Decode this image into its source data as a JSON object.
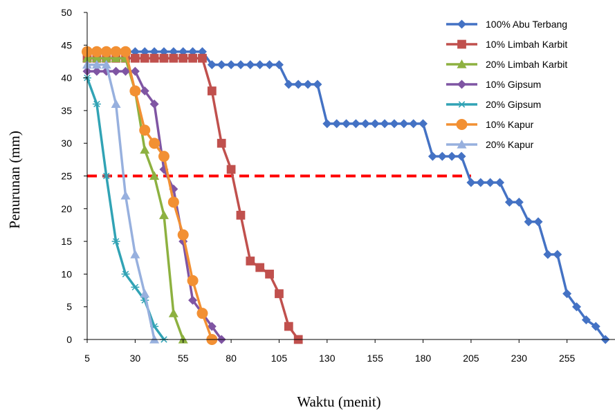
{
  "chart_data": {
    "type": "line",
    "title": "",
    "xlabel": "Waktu (menit)",
    "ylabel": "Penurunan (mm)",
    "xlim": [
      5,
      280
    ],
    "ylim": [
      0,
      50
    ],
    "x_ticks": [
      5,
      30,
      55,
      80,
      105,
      130,
      155,
      180,
      205,
      230,
      255
    ],
    "y_ticks": [
      0,
      5,
      10,
      15,
      20,
      25,
      30,
      35,
      40,
      45,
      50
    ],
    "grid": false,
    "legend_position": "top-right",
    "reference_line": {
      "y": 25,
      "x_start": 5,
      "x_end": 205,
      "color": "#ff0000",
      "style": "dashed"
    },
    "series": [
      {
        "name": "100% Abu Terbang",
        "color": "#4472c4",
        "marker": "diamond",
        "points": [
          [
            5,
            44
          ],
          [
            10,
            44
          ],
          [
            15,
            44
          ],
          [
            20,
            44
          ],
          [
            25,
            44
          ],
          [
            30,
            44
          ],
          [
            35,
            44
          ],
          [
            40,
            44
          ],
          [
            45,
            44
          ],
          [
            50,
            44
          ],
          [
            55,
            44
          ],
          [
            60,
            44
          ],
          [
            65,
            44
          ],
          [
            70,
            42
          ],
          [
            75,
            42
          ],
          [
            80,
            42
          ],
          [
            85,
            42
          ],
          [
            90,
            42
          ],
          [
            95,
            42
          ],
          [
            100,
            42
          ],
          [
            105,
            42
          ],
          [
            110,
            39
          ],
          [
            115,
            39
          ],
          [
            120,
            39
          ],
          [
            125,
            39
          ],
          [
            130,
            33
          ],
          [
            135,
            33
          ],
          [
            140,
            33
          ],
          [
            145,
            33
          ],
          [
            150,
            33
          ],
          [
            155,
            33
          ],
          [
            160,
            33
          ],
          [
            165,
            33
          ],
          [
            170,
            33
          ],
          [
            175,
            33
          ],
          [
            180,
            33
          ],
          [
            185,
            28
          ],
          [
            190,
            28
          ],
          [
            195,
            28
          ],
          [
            200,
            28
          ],
          [
            205,
            24
          ],
          [
            210,
            24
          ],
          [
            215,
            24
          ],
          [
            220,
            24
          ],
          [
            225,
            21
          ],
          [
            230,
            21
          ],
          [
            235,
            18
          ],
          [
            240,
            18
          ],
          [
            245,
            13
          ],
          [
            250,
            13
          ],
          [
            255,
            7
          ],
          [
            260,
            5
          ],
          [
            265,
            3
          ],
          [
            270,
            2
          ],
          [
            275,
            0
          ]
        ]
      },
      {
        "name": "10% Limbah Karbit",
        "color": "#c0504d",
        "marker": "square",
        "points": [
          [
            5,
            43
          ],
          [
            10,
            43
          ],
          [
            15,
            43
          ],
          [
            20,
            43
          ],
          [
            25,
            43
          ],
          [
            30,
            43
          ],
          [
            35,
            43
          ],
          [
            40,
            43
          ],
          [
            45,
            43
          ],
          [
            50,
            43
          ],
          [
            55,
            43
          ],
          [
            60,
            43
          ],
          [
            65,
            43
          ],
          [
            70,
            38
          ],
          [
            75,
            30
          ],
          [
            80,
            26
          ],
          [
            85,
            19
          ],
          [
            90,
            12
          ],
          [
            95,
            11
          ],
          [
            100,
            10
          ],
          [
            105,
            7
          ],
          [
            110,
            2
          ],
          [
            115,
            0
          ]
        ]
      },
      {
        "name": "20% Limbah Karbit",
        "color": "#8db140",
        "marker": "triangle",
        "points": [
          [
            5,
            43
          ],
          [
            10,
            43
          ],
          [
            15,
            43
          ],
          [
            20,
            43
          ],
          [
            25,
            43
          ],
          [
            30,
            38
          ],
          [
            35,
            29
          ],
          [
            40,
            25
          ],
          [
            45,
            19
          ],
          [
            50,
            4
          ],
          [
            55,
            0
          ]
        ]
      },
      {
        "name": "10% Gipsum",
        "color": "#7f55a3",
        "marker": "diamond",
        "points": [
          [
            5,
            41
          ],
          [
            10,
            41
          ],
          [
            15,
            41
          ],
          [
            20,
            41
          ],
          [
            25,
            41
          ],
          [
            30,
            41
          ],
          [
            35,
            38
          ],
          [
            40,
            36
          ],
          [
            45,
            26
          ],
          [
            50,
            23
          ],
          [
            55,
            15
          ],
          [
            60,
            6
          ],
          [
            65,
            4
          ],
          [
            70,
            2
          ],
          [
            75,
            0
          ]
        ]
      },
      {
        "name": "20% Gipsum",
        "color": "#31a3b5",
        "marker": "star",
        "points": [
          [
            5,
            40
          ],
          [
            10,
            36
          ],
          [
            15,
            25
          ],
          [
            20,
            15
          ],
          [
            25,
            10
          ],
          [
            30,
            8
          ],
          [
            35,
            6
          ],
          [
            40,
            2
          ],
          [
            45,
            0
          ]
        ]
      },
      {
        "name": "10% Kapur",
        "color": "#f29033",
        "marker": "circle",
        "points": [
          [
            5,
            44
          ],
          [
            10,
            44
          ],
          [
            15,
            44
          ],
          [
            20,
            44
          ],
          [
            25,
            44
          ],
          [
            30,
            38
          ],
          [
            35,
            32
          ],
          [
            40,
            30
          ],
          [
            45,
            28
          ],
          [
            50,
            21
          ],
          [
            55,
            16
          ],
          [
            60,
            9
          ],
          [
            65,
            4
          ],
          [
            70,
            0
          ]
        ]
      },
      {
        "name": "20% Kapur",
        "color": "#97b0de",
        "marker": "triangle",
        "points": [
          [
            5,
            42
          ],
          [
            10,
            42
          ],
          [
            15,
            42
          ],
          [
            20,
            36
          ],
          [
            25,
            22
          ],
          [
            30,
            13
          ],
          [
            35,
            7
          ],
          [
            40,
            0
          ]
        ]
      }
    ]
  }
}
